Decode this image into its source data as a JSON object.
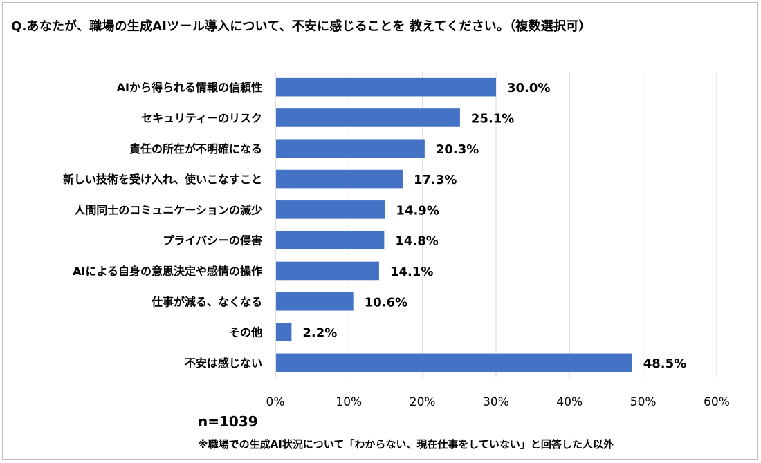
{
  "chart_data": {
    "type": "bar",
    "orientation": "horizontal",
    "title": "Q.あなたが、職場の生成AIツール導入について、不安に感じることを 教えてください。（複数選択可）",
    "categories": [
      "AIから得られる情報の信頼性",
      "セキュリティーのリスク",
      "責任の所在が不明確になる",
      "新しい技術を受け入れ、使いこなすこと",
      "人間同士のコミュニケーションの減少",
      "プライバシーの侵害",
      "AIによる自身の意思決定や感情の操作",
      "仕事が減る、なくなる",
      "その他",
      "不安は感じない"
    ],
    "values": [
      30.0,
      25.1,
      20.3,
      17.3,
      14.9,
      14.8,
      14.1,
      10.6,
      2.2,
      48.5
    ],
    "value_labels": [
      "30.0%",
      "25.1%",
      "20.3%",
      "17.3%",
      "14.9%",
      "14.8%",
      "14.1%",
      "10.6%",
      "2.2%",
      "48.5%"
    ],
    "xlim": [
      0,
      60
    ],
    "xticks": [
      0,
      10,
      20,
      30,
      40,
      50,
      60
    ],
    "xtick_labels": [
      "0%",
      "10%",
      "20%",
      "30%",
      "40%",
      "50%",
      "60%"
    ],
    "grid": true,
    "bar_color": "#4472c4",
    "grid_color": "#d9d9d9"
  },
  "notes": {
    "sample_size": "n=1039",
    "footnote": "※職場での生成AI状況について「わからない、現在仕事をしていない」と回答した人以外"
  }
}
